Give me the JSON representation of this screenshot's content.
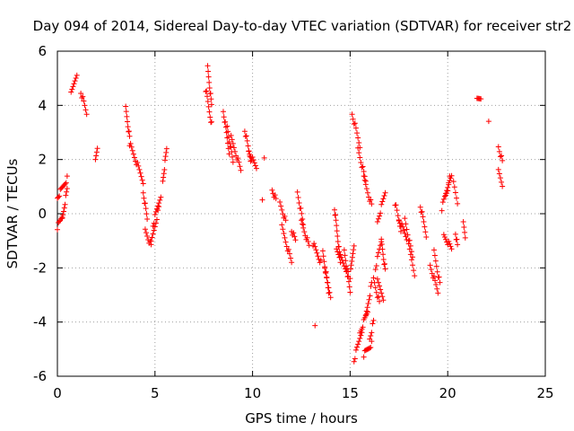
{
  "chart_data": {
    "type": "scatter",
    "title": "Day 094 of 2014, Sidereal Day-to-day VTEC variation (SDTVAR) for receiver str2",
    "xlabel": "GPS time / hours",
    "ylabel": "SDTVAR / TECUs",
    "xlim": [
      0,
      25
    ],
    "ylim": [
      -6,
      6
    ],
    "xticks": [
      "0",
      "5",
      "10",
      "15",
      "20",
      "25"
    ],
    "yticks": [
      "-6",
      "-4",
      "-2",
      "0",
      "2",
      "4",
      "6"
    ],
    "grid": true,
    "marker": "+",
    "color": "#ff0000",
    "segments": [
      {
        "t0": 0.0,
        "t1": 0.25,
        "v0": -0.5,
        "v1": -0.1
      },
      {
        "t0": 0.0,
        "t1": 0.5,
        "v0": 0.6,
        "v1": 1.3
      },
      {
        "t0": 0.25,
        "t1": 0.5,
        "v0": -0.2,
        "v1": 0.9
      },
      {
        "t0": 0.7,
        "t1": 1.0,
        "v0": 4.4,
        "v1": 5.2
      },
      {
        "t0": 1.2,
        "t1": 1.5,
        "v0": 4.5,
        "v1": 3.7
      },
      {
        "t0": 1.95,
        "t1": 2.05,
        "v0": 2.0,
        "v1": 2.5
      },
      {
        "t0": 3.5,
        "t1": 3.7,
        "v0": 3.9,
        "v1": 2.8
      },
      {
        "t0": 3.7,
        "t1": 4.4,
        "v0": 2.6,
        "v1": 1.2
      },
      {
        "t0": 4.4,
        "t1": 4.6,
        "v0": 0.8,
        "v1": -0.2
      },
      {
        "t0": 4.5,
        "t1": 4.8,
        "v0": -0.6,
        "v1": -1.2
      },
      {
        "t0": 4.8,
        "t1": 5.2,
        "v0": -1.1,
        "v1": 0.2
      },
      {
        "t0": 4.9,
        "t1": 5.3,
        "v0": -0.4,
        "v1": 0.7
      },
      {
        "t0": 5.4,
        "t1": 5.6,
        "v0": 1.2,
        "v1": 2.4
      },
      {
        "t0": 7.7,
        "t1": 7.9,
        "v0": 5.4,
        "v1": 4.0
      },
      {
        "t0": 7.6,
        "t1": 7.9,
        "v0": 4.6,
        "v1": 3.3
      },
      {
        "t0": 8.5,
        "t1": 8.8,
        "v0": 3.8,
        "v1": 2.3
      },
      {
        "t0": 8.7,
        "t1": 9.0,
        "v0": 3.2,
        "v1": 1.9
      },
      {
        "t0": 8.9,
        "t1": 9.4,
        "v0": 2.8,
        "v1": 1.6
      },
      {
        "t0": 9.6,
        "t1": 9.9,
        "v0": 3.1,
        "v1": 2.0
      },
      {
        "t0": 9.8,
        "t1": 10.2,
        "v0": 2.3,
        "v1": 1.7
      },
      {
        "t0": 10.6,
        "t1": 10.6,
        "v0": 2.0,
        "v1": 2.0
      },
      {
        "t0": 10.5,
        "t1": 10.5,
        "v0": 0.6,
        "v1": 0.6
      },
      {
        "t0": 11.0,
        "t1": 11.2,
        "v0": 0.9,
        "v1": 0.5
      },
      {
        "t0": 11.4,
        "t1": 11.7,
        "v0": 0.4,
        "v1": -0.3
      },
      {
        "t0": 11.5,
        "t1": 12.0,
        "v0": -0.5,
        "v1": -1.8
      },
      {
        "t0": 12.0,
        "t1": 12.2,
        "v0": -0.6,
        "v1": -1.0
      },
      {
        "t0": 12.3,
        "t1": 12.6,
        "v0": 0.8,
        "v1": -0.4
      },
      {
        "t0": 12.5,
        "t1": 12.9,
        "v0": -0.3,
        "v1": -1.2
      },
      {
        "t0": 13.1,
        "t1": 13.5,
        "v0": -1.1,
        "v1": -1.8
      },
      {
        "t0": 13.2,
        "t1": 13.2,
        "v0": -4.1,
        "v1": -4.1
      },
      {
        "t0": 13.6,
        "t1": 13.9,
        "v0": -1.4,
        "v1": -2.9
      },
      {
        "t0": 13.7,
        "t1": 14.0,
        "v0": -2.1,
        "v1": -3.0
      },
      {
        "t0": 14.2,
        "t1": 14.5,
        "v0": 0.2,
        "v1": -1.8
      },
      {
        "t0": 14.3,
        "t1": 14.9,
        "v0": -1.3,
        "v1": -2.2
      },
      {
        "t0": 14.7,
        "t1": 15.0,
        "v0": -1.4,
        "v1": -2.9
      },
      {
        "t0": 15.0,
        "t1": 15.2,
        "v0": -2.3,
        "v1": -1.1
      },
      {
        "t0": 15.1,
        "t1": 15.5,
        "v0": 3.7,
        "v1": 2.5
      },
      {
        "t0": 15.4,
        "t1": 15.8,
        "v0": 2.4,
        "v1": 1.2
      },
      {
        "t0": 15.7,
        "t1": 16.1,
        "v0": 1.3,
        "v1": 0.3
      },
      {
        "t0": 15.2,
        "t1": 15.6,
        "v0": -5.4,
        "v1": -4.3
      },
      {
        "t0": 15.5,
        "t1": 15.9,
        "v0": -4.4,
        "v1": -3.6
      },
      {
        "t0": 15.8,
        "t1": 16.1,
        "v0": -3.8,
        "v1": -2.6
      },
      {
        "t0": 15.7,
        "t1": 16.1,
        "v0": -5.2,
        "v1": -4.8
      },
      {
        "t0": 16.0,
        "t1": 16.2,
        "v0": -4.6,
        "v1": -4.0
      },
      {
        "t0": 16.2,
        "t1": 16.5,
        "v0": -2.4,
        "v1": -3.3
      },
      {
        "t0": 16.4,
        "t1": 16.7,
        "v0": -2.5,
        "v1": -3.1
      },
      {
        "t0": 16.3,
        "t1": 16.6,
        "v0": -2.0,
        "v1": -1.0
      },
      {
        "t0": 16.4,
        "t1": 16.8,
        "v0": -0.3,
        "v1": 0.8
      },
      {
        "t0": 16.6,
        "t1": 16.8,
        "v0": -1.0,
        "v1": -2.1
      },
      {
        "t0": 17.3,
        "t1": 17.6,
        "v0": 0.4,
        "v1": -0.6
      },
      {
        "t0": 17.5,
        "t1": 17.9,
        "v0": -0.2,
        "v1": -0.9
      },
      {
        "t0": 17.8,
        "t1": 18.2,
        "v0": -0.2,
        "v1": -1.6
      },
      {
        "t0": 18.0,
        "t1": 18.3,
        "v0": -1.2,
        "v1": -2.2
      },
      {
        "t0": 18.6,
        "t1": 18.9,
        "v0": 0.3,
        "v1": -0.8
      },
      {
        "t0": 19.1,
        "t1": 19.5,
        "v0": -1.9,
        "v1": -2.9
      },
      {
        "t0": 19.3,
        "t1": 19.6,
        "v0": -1.4,
        "v1": -2.6
      },
      {
        "t0": 19.7,
        "t1": 20.1,
        "v0": 0.2,
        "v1": 1.3
      },
      {
        "t0": 19.9,
        "t1": 20.2,
        "v0": 0.7,
        "v1": 1.4
      },
      {
        "t0": 19.8,
        "t1": 20.2,
        "v0": -0.8,
        "v1": -1.3
      },
      {
        "t0": 20.3,
        "t1": 20.5,
        "v0": 1.1,
        "v1": 0.4
      },
      {
        "t0": 20.4,
        "t1": 20.5,
        "v0": -0.7,
        "v1": -1.2
      },
      {
        "t0": 20.8,
        "t1": 20.9,
        "v0": -0.3,
        "v1": -0.8
      },
      {
        "t0": 21.5,
        "t1": 21.7,
        "v0": 4.2,
        "v1": 4.3
      },
      {
        "t0": 22.1,
        "t1": 22.1,
        "v0": 3.5,
        "v1": 3.5
      },
      {
        "t0": 22.6,
        "t1": 22.8,
        "v0": 2.5,
        "v1": 1.9
      },
      {
        "t0": 22.6,
        "t1": 22.8,
        "v0": 1.6,
        "v1": 1.1
      }
    ]
  }
}
